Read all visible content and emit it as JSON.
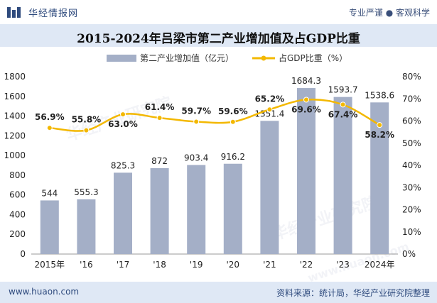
{
  "header": {
    "brand": "华经情报网",
    "tagline": "专业严谨 ● 客观科学"
  },
  "chart_data": {
    "type": "bar",
    "title": "2015-2024年吕梁市第二产业增加值及占GDP比重",
    "categories": [
      "2015年",
      "'16",
      "'17",
      "'18",
      "'19",
      "'20",
      "'21",
      "'22",
      "'23",
      "2024年"
    ],
    "series": [
      {
        "name": "第二产业增加值（亿元）",
        "type": "bar",
        "axis": "left",
        "color": "#a4afc7",
        "values": [
          544,
          555.3,
          825.3,
          872,
          903.4,
          916.2,
          1351.4,
          1684.3,
          1593.7,
          1538.6
        ],
        "labels": [
          "544",
          "555.3",
          "825.3",
          "872",
          "903.4",
          "916.2",
          "1351.4",
          "1684.3",
          "1593.7",
          "1538.6"
        ]
      },
      {
        "name": "占GDP比重（%）",
        "type": "line",
        "axis": "right",
        "color": "#f3b800",
        "values": [
          56.9,
          55.8,
          63.0,
          61.4,
          59.7,
          59.6,
          65.2,
          69.6,
          67.4,
          58.2
        ],
        "labels": [
          "56.9%",
          "55.8%",
          "63.0%",
          "61.4%",
          "59.7%",
          "59.6%",
          "65.2%",
          "69.6%",
          "67.4%",
          "58.2%"
        ]
      }
    ],
    "yleft": {
      "ylim": [
        0,
        1800
      ],
      "ticks": [
        "0",
        "200",
        "400",
        "600",
        "800",
        "1000",
        "1200",
        "1400",
        "1600",
        "1800"
      ]
    },
    "yright": {
      "ylim": [
        0,
        80
      ],
      "ticks": [
        "0%",
        "10%",
        "20%",
        "30%",
        "40%",
        "50%",
        "60%",
        "70%",
        "80%"
      ]
    },
    "legend_position": "top",
    "grid": false
  },
  "watermark": [
    "华经产业研究院",
    "www.huaon.com"
  ],
  "footer": {
    "site": "www.huaon.com",
    "source": "资料来源：统计局，华经产业研究院整理"
  }
}
